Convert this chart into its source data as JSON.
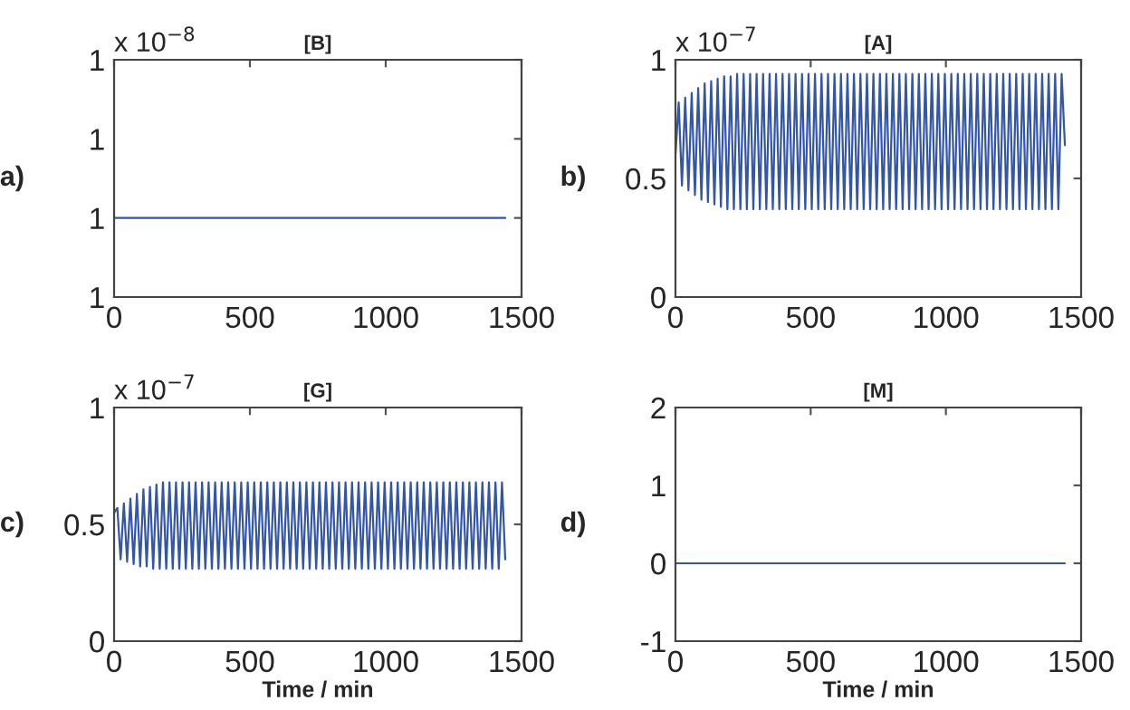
{
  "chart_data": [
    {
      "type": "line",
      "title": "[B]",
      "annotations": [
        "a)",
        "x 10$^{−8}$"
      ],
      "x": [
        0,
        1440
      ],
      "series": [
        {
          "color": "#3355aa",
          "values": [
            1.0,
            1.0
          ]
        }
      ],
      "xlim": [
        0,
        1500
      ],
      "xticks": [
        0,
        500,
        1000,
        1500
      ],
      "ylim": [
        0.99999,
        1.00002
      ],
      "yticks": [
        {
          "value": 0.99999,
          "label": "1"
        },
        {
          "value": 1.0,
          "label": "1"
        },
        {
          "value": 1.00001,
          "label": "1"
        },
        {
          "value": 1.00002,
          "label": "1"
        }
      ],
      "grid": false,
      "legend": false
    },
    {
      "type": "line",
      "title": "[A]",
      "annotations": [
        "b)",
        "x 10$^{−7}$"
      ],
      "x": [
        0,
        12,
        24,
        36,
        48,
        60,
        72,
        84,
        96,
        108,
        120,
        132,
        144,
        156,
        168,
        180,
        192,
        204,
        216,
        228,
        240,
        252,
        264,
        276,
        288,
        300,
        312,
        324,
        336,
        348,
        360,
        372,
        384,
        396,
        408,
        420,
        432,
        444,
        456,
        468,
        480,
        492,
        504,
        516,
        528,
        540,
        552,
        564,
        576,
        588,
        600,
        612,
        624,
        636,
        648,
        660,
        672,
        684,
        696,
        708,
        720,
        732,
        744,
        756,
        768,
        780,
        792,
        804,
        816,
        828,
        840,
        852,
        864,
        876,
        888,
        900,
        912,
        924,
        936,
        948,
        960,
        972,
        984,
        996,
        1008,
        1020,
        1032,
        1044,
        1056,
        1068,
        1080,
        1092,
        1104,
        1116,
        1128,
        1140,
        1152,
        1164,
        1176,
        1188,
        1200,
        1212,
        1224,
        1236,
        1248,
        1260,
        1272,
        1284,
        1296,
        1308,
        1320,
        1332,
        1344,
        1356,
        1368,
        1380,
        1392,
        1404,
        1416,
        1428,
        1440
      ],
      "series": [
        {
          "color": "#3355aa",
          "values": [
            0.6,
            0.82,
            0.47,
            0.84,
            0.45,
            0.86,
            0.43,
            0.88,
            0.41,
            0.9,
            0.4,
            0.91,
            0.39,
            0.92,
            0.38,
            0.93,
            0.37,
            0.93,
            0.37,
            0.94,
            0.37,
            0.94,
            0.37,
            0.94,
            0.37,
            0.94,
            0.37,
            0.94,
            0.37,
            0.94,
            0.37,
            0.94,
            0.37,
            0.94,
            0.37,
            0.94,
            0.37,
            0.94,
            0.37,
            0.94,
            0.37,
            0.94,
            0.37,
            0.94,
            0.37,
            0.94,
            0.37,
            0.94,
            0.37,
            0.94,
            0.37,
            0.94,
            0.37,
            0.94,
            0.37,
            0.94,
            0.37,
            0.94,
            0.37,
            0.94,
            0.37,
            0.94,
            0.37,
            0.94,
            0.37,
            0.94,
            0.37,
            0.94,
            0.37,
            0.94,
            0.37,
            0.94,
            0.37,
            0.94,
            0.37,
            0.94,
            0.37,
            0.94,
            0.37,
            0.94,
            0.37,
            0.94,
            0.37,
            0.94,
            0.37,
            0.94,
            0.37,
            0.94,
            0.37,
            0.94,
            0.37,
            0.94,
            0.37,
            0.94,
            0.37,
            0.94,
            0.37,
            0.94,
            0.37,
            0.94,
            0.37,
            0.94,
            0.37,
            0.94,
            0.37,
            0.94,
            0.37,
            0.94,
            0.37,
            0.94,
            0.37,
            0.94,
            0.37,
            0.94,
            0.37,
            0.94,
            0.37,
            0.94,
            0.37,
            0.94,
            0.64
          ]
        }
      ],
      "xlim": [
        0,
        1500
      ],
      "xticks": [
        0,
        500,
        1000,
        1500
      ],
      "ylim": [
        0,
        1
      ],
      "yticks": [
        0,
        0.5,
        1
      ],
      "grid": false,
      "legend": false
    },
    {
      "type": "line",
      "title": "[G]",
      "xlabel": "Time / min",
      "annotations": [
        "c)",
        "x 10$^{−7}$"
      ],
      "x": [
        0,
        12,
        24,
        36,
        48,
        60,
        72,
        84,
        96,
        108,
        120,
        132,
        144,
        156,
        168,
        180,
        192,
        204,
        216,
        228,
        240,
        252,
        264,
        276,
        288,
        300,
        312,
        324,
        336,
        348,
        360,
        372,
        384,
        396,
        408,
        420,
        432,
        444,
        456,
        468,
        480,
        492,
        504,
        516,
        528,
        540,
        552,
        564,
        576,
        588,
        600,
        612,
        624,
        636,
        648,
        660,
        672,
        684,
        696,
        708,
        720,
        732,
        744,
        756,
        768,
        780,
        792,
        804,
        816,
        828,
        840,
        852,
        864,
        876,
        888,
        900,
        912,
        924,
        936,
        948,
        960,
        972,
        984,
        996,
        1008,
        1020,
        1032,
        1044,
        1056,
        1068,
        1080,
        1092,
        1104,
        1116,
        1128,
        1140,
        1152,
        1164,
        1176,
        1188,
        1200,
        1212,
        1224,
        1236,
        1248,
        1260,
        1272,
        1284,
        1296,
        1308,
        1320,
        1332,
        1344,
        1356,
        1368,
        1380,
        1392,
        1404,
        1416,
        1428,
        1440
      ],
      "series": [
        {
          "color": "#3355aa",
          "values": [
            0.55,
            0.57,
            0.35,
            0.59,
            0.34,
            0.61,
            0.33,
            0.63,
            0.32,
            0.65,
            0.32,
            0.66,
            0.31,
            0.67,
            0.31,
            0.68,
            0.31,
            0.68,
            0.31,
            0.68,
            0.31,
            0.68,
            0.31,
            0.68,
            0.31,
            0.68,
            0.31,
            0.68,
            0.31,
            0.68,
            0.31,
            0.68,
            0.31,
            0.68,
            0.31,
            0.68,
            0.31,
            0.68,
            0.31,
            0.68,
            0.31,
            0.68,
            0.31,
            0.68,
            0.31,
            0.68,
            0.31,
            0.68,
            0.31,
            0.68,
            0.31,
            0.68,
            0.31,
            0.68,
            0.31,
            0.68,
            0.31,
            0.68,
            0.31,
            0.68,
            0.31,
            0.68,
            0.31,
            0.68,
            0.31,
            0.68,
            0.31,
            0.68,
            0.31,
            0.68,
            0.31,
            0.68,
            0.31,
            0.68,
            0.31,
            0.68,
            0.31,
            0.68,
            0.31,
            0.68,
            0.31,
            0.68,
            0.31,
            0.68,
            0.31,
            0.68,
            0.31,
            0.68,
            0.31,
            0.68,
            0.31,
            0.68,
            0.31,
            0.68,
            0.31,
            0.68,
            0.31,
            0.68,
            0.31,
            0.68,
            0.31,
            0.68,
            0.31,
            0.68,
            0.31,
            0.68,
            0.31,
            0.68,
            0.31,
            0.68,
            0.31,
            0.68,
            0.31,
            0.68,
            0.31,
            0.68,
            0.31,
            0.68,
            0.31,
            0.68,
            0.35
          ]
        }
      ],
      "xlim": [
        0,
        1500
      ],
      "xticks": [
        0,
        500,
        1000,
        1500
      ],
      "ylim": [
        0,
        1
      ],
      "yticks": [
        0,
        0.5,
        1
      ],
      "grid": false,
      "legend": false
    },
    {
      "type": "line",
      "title": "[M]",
      "xlabel": "Time / min",
      "annotations": [
        "d)"
      ],
      "x": [
        0,
        1440
      ],
      "series": [
        {
          "color": "#3355aa",
          "values": [
            0,
            0
          ]
        }
      ],
      "xlim": [
        0,
        1500
      ],
      "xticks": [
        0,
        500,
        1000,
        1500
      ],
      "ylim": [
        -1,
        2
      ],
      "yticks": [
        -1,
        0,
        1,
        2
      ],
      "grid": false,
      "legend": false
    }
  ]
}
